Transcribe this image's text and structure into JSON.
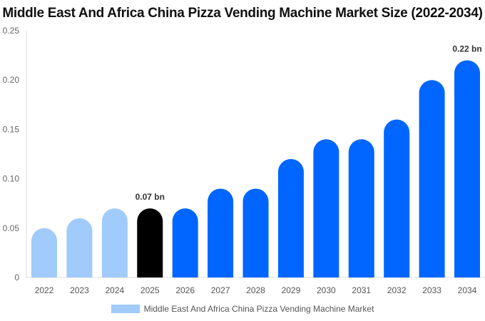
{
  "chart_data": {
    "type": "bar",
    "title": "Middle East And Africa China Pizza Vending Machine Market Size (2022-2034)",
    "categories": [
      "2022",
      "2023",
      "2024",
      "2025",
      "2026",
      "2027",
      "2028",
      "2029",
      "2030",
      "2031",
      "2032",
      "2033",
      "2034"
    ],
    "series": [
      {
        "name": "Middle East And Africa China Pizza Vending Machine Market",
        "values": [
          0.05,
          0.06,
          0.07,
          0.07,
          0.07,
          0.09,
          0.09,
          0.12,
          0.14,
          0.14,
          0.16,
          0.2,
          0.22
        ]
      }
    ],
    "ylim": [
      0,
      0.25
    ],
    "yticks": [
      "0",
      "0.05",
      "0.10",
      "0.15",
      "0.20",
      "0.25"
    ],
    "data_labels": [
      {
        "category": "2025",
        "text": "0.07 bn"
      },
      {
        "category": "2034",
        "text": "0.22 bn"
      }
    ],
    "colors": {
      "historical": "#a0cbfb",
      "current": "#000000",
      "forecast": "#0066ff"
    },
    "grid": false,
    "legend_placement": "bottom"
  }
}
